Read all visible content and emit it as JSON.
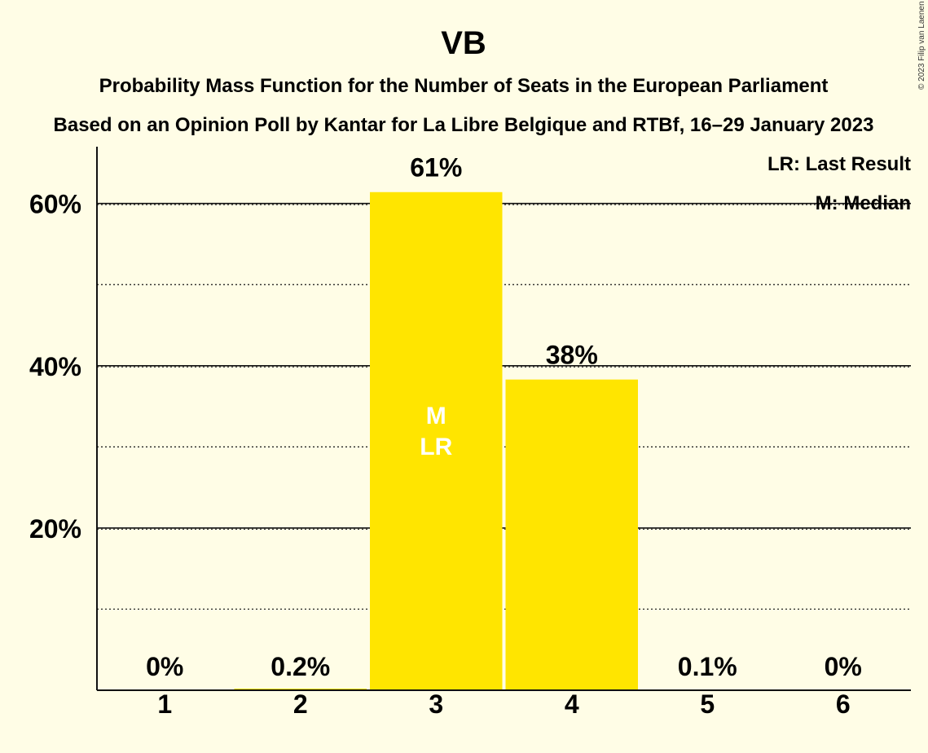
{
  "chart_data": {
    "type": "bar",
    "title": "VB",
    "subtitle_lines": [
      "Probability Mass Function for the Number of Seats in the European Parliament",
      "Based on an Opinion Poll by Kantar for La Libre Belgique and RTBf, 16–29 January 2023"
    ],
    "categories": [
      "1",
      "2",
      "3",
      "4",
      "5",
      "6"
    ],
    "values": [
      0,
      0.2,
      61.4,
      38.3,
      0.1,
      0
    ],
    "value_labels": [
      "0%",
      "0.2%",
      "61%",
      "38%",
      "0.1%",
      "0%"
    ],
    "ylim": [
      0,
      67
    ],
    "y_major_ticks": [
      20,
      40,
      60
    ],
    "y_tick_labels": [
      "20%",
      "40%",
      "60%"
    ],
    "y_minor_ticks": [
      10,
      30,
      50
    ],
    "grid": true,
    "bar_color": "#ffe500",
    "median_category": "3",
    "last_result_category": "3",
    "bar_markers": [
      "M",
      "LR"
    ],
    "legend": {
      "position": "top-right",
      "entries": [
        "LR: Last Result",
        "M: Median"
      ]
    },
    "copyright": "© 2023 Filip van Laenen"
  }
}
